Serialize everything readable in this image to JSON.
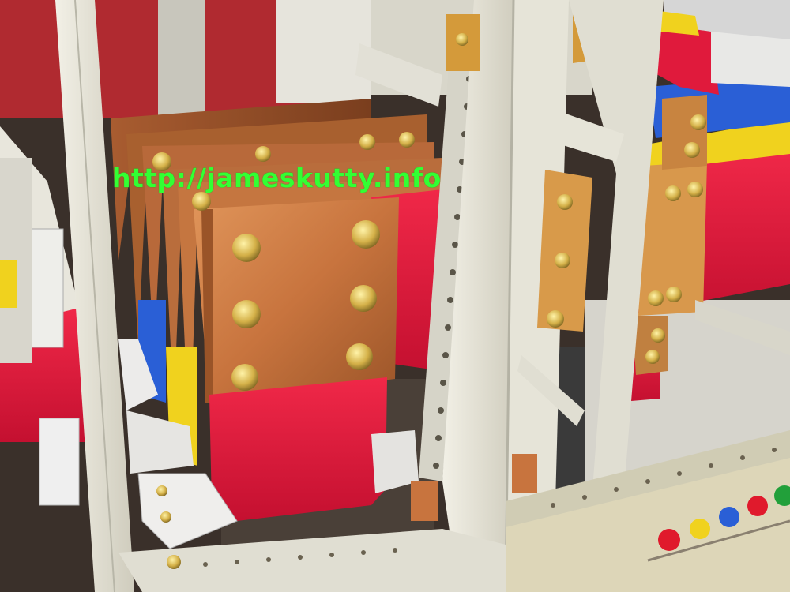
{
  "watermark": {
    "text": "http://jameskutty.info"
  },
  "scene": {
    "subject": "panel-busbars",
    "colors": {
      "copper": "#c8743e",
      "copper_dark": "#8a4a24",
      "red_phase": "#e01a3c",
      "yellow_phase": "#f0d21e",
      "blue_phase": "#2a5fd6",
      "frame": "#e4e2d6",
      "insulator": "#ecebea"
    },
    "indicator_lamps": [
      "red",
      "yellow",
      "blue",
      "red",
      "green"
    ]
  }
}
